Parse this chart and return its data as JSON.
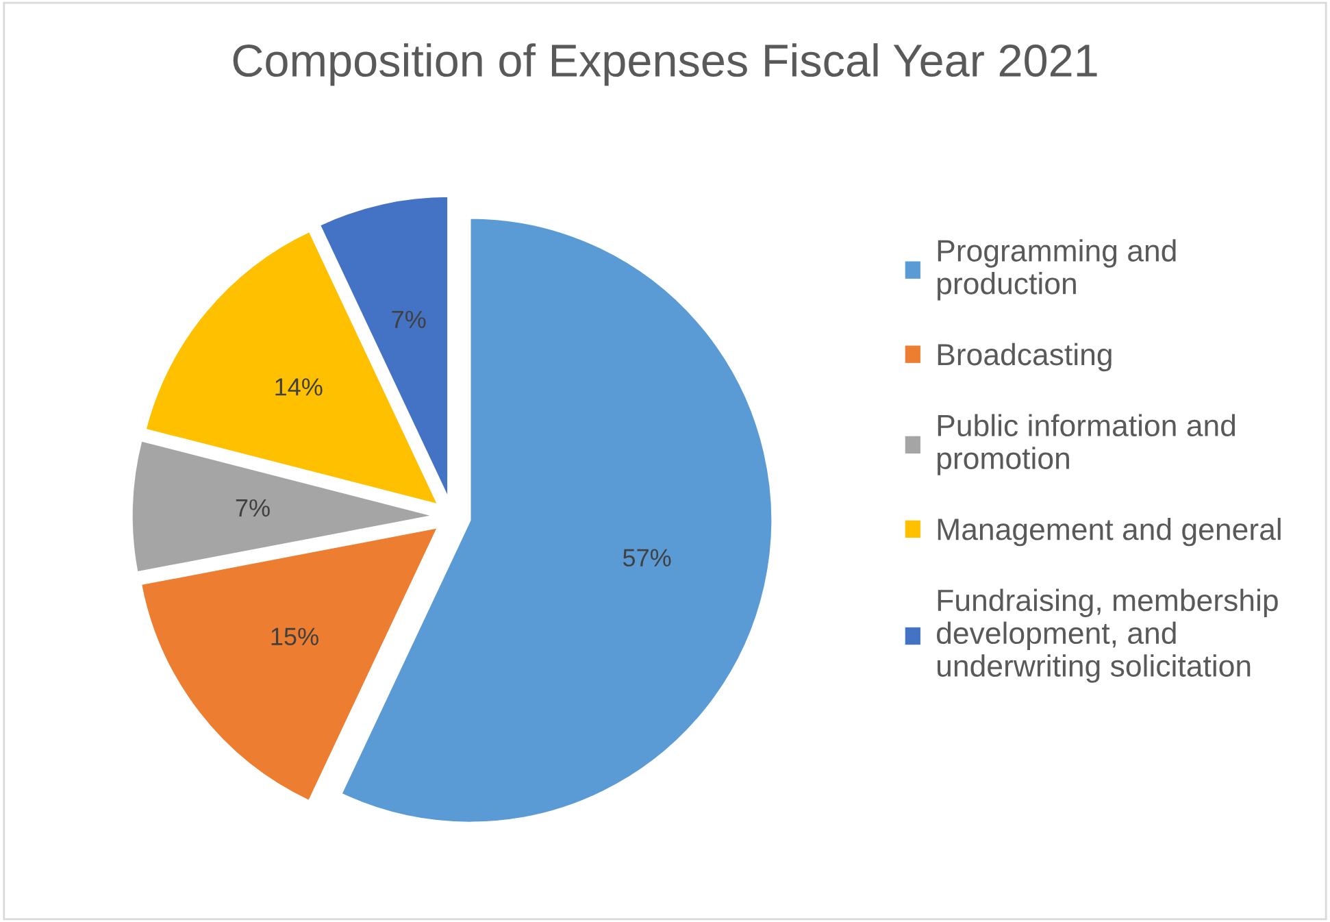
{
  "chart_data": {
    "type": "pie",
    "title": "Composition of Expenses Fiscal Year 2021",
    "categories": [
      "Programming and production",
      "Broadcasting",
      "Public information and promotion",
      "Management and general",
      "Fundraising, membership development, and underwriting solicitation"
    ],
    "values": [
      57,
      15,
      7,
      14,
      7
    ],
    "colors": [
      "#5b9bd5",
      "#ed7d31",
      "#a5a5a5",
      "#ffc000",
      "#4472c4"
    ],
    "value_labels": [
      "57%",
      "15%",
      "7%",
      "14%",
      "7%"
    ],
    "legend": "right"
  }
}
